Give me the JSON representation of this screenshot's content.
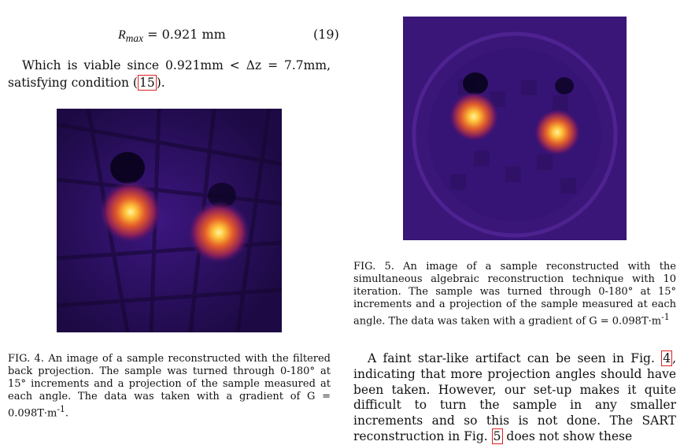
{
  "equation": {
    "lhs": "R",
    "subscript": "max",
    "rhs": " = 0.921 mm",
    "number": "(19)"
  },
  "para1": {
    "part1": "Which is viable since 0.921mm < Δz = 7.7mm, satisfying condition ",
    "ref": "15",
    "part2": "."
  },
  "fig4": {
    "caption_label": "FIG. 4.",
    "caption_text": "An image of a sample reconstructed with the filtered back projection. The sample was turned through 0-180° at 15° increments and a projection of the sample measured at each angle. The data was taken with a gradient of G = 0.098T·m",
    "caption_exp": "-1",
    "caption_end": "."
  },
  "fig5": {
    "caption_label": "FIG. 5.",
    "caption_text": "An image of a sample reconstructed with the simultaneous algebraic reconstruction technique with 10 iteration. The sample was turned through 0-180° at 15° increments and a projection of the sample measured at each angle. The data was taken with a gradient of G = 0.098T·m",
    "caption_exp": "-1"
  },
  "para2": {
    "part1": "A faint star-like artifact can be seen in Fig. ",
    "ref1": "4",
    "part2": ", indicating that more projection angles should have been taken. However, our set-up makes it quite difficult to turn the sample in any smaller increments and so this is not done. The SART reconstruction in Fig. ",
    "ref2": "5",
    "part3": " does not show these"
  },
  "colors": {
    "background_dark": "#2a0f5c",
    "hotspot": "#ffd45a",
    "ref_box": "#e02020"
  }
}
